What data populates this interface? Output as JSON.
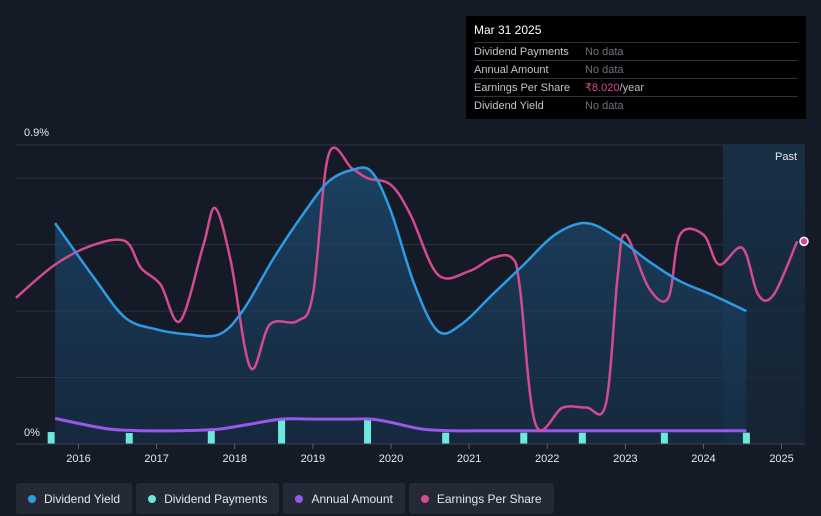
{
  "tooltip": {
    "date": "Mar 31 2025",
    "rows": [
      {
        "label": "Dividend Payments",
        "value": "No data"
      },
      {
        "label": "Annual Amount",
        "value": "No data"
      },
      {
        "label": "Earnings Per Share",
        "value": "₹8.020",
        "unit": "/year"
      },
      {
        "label": "Dividend Yield",
        "value": "No data"
      }
    ]
  },
  "legend": [
    {
      "label": "Dividend Yield",
      "color": "#2d9be6"
    },
    {
      "label": "Dividend Payments",
      "color": "#6ee7dc"
    },
    {
      "label": "Annual Amount",
      "color": "#9a58e8"
    },
    {
      "label": "Earnings Per Share",
      "color": "#d34b8e"
    }
  ],
  "chart_data": {
    "type": "line",
    "title": "",
    "ylabel_top": "0.9%",
    "ylabel_bottom": "0%",
    "ylim": [
      0,
      0.9
    ],
    "xlim": [
      2015.2,
      2025.3
    ],
    "past_label": "Past",
    "past_start": 2024.25,
    "x_ticks": [
      "2016",
      "2017",
      "2018",
      "2019",
      "2020",
      "2021",
      "2022",
      "2023",
      "2024",
      "2025"
    ],
    "series": [
      {
        "name": "Dividend Yield",
        "color": "#2d9be6",
        "filled": true,
        "points": [
          [
            2015.7,
            0.665
          ],
          [
            2016.2,
            0.5
          ],
          [
            2016.6,
            0.38
          ],
          [
            2017.0,
            0.345
          ],
          [
            2017.4,
            0.33
          ],
          [
            2017.8,
            0.33
          ],
          [
            2018.1,
            0.4
          ],
          [
            2018.5,
            0.56
          ],
          [
            2018.9,
            0.7
          ],
          [
            2019.2,
            0.79
          ],
          [
            2019.5,
            0.825
          ],
          [
            2019.75,
            0.82
          ],
          [
            2020.0,
            0.7
          ],
          [
            2020.3,
            0.48
          ],
          [
            2020.6,
            0.34
          ],
          [
            2020.9,
            0.36
          ],
          [
            2021.3,
            0.45
          ],
          [
            2021.7,
            0.54
          ],
          [
            2022.1,
            0.63
          ],
          [
            2022.5,
            0.665
          ],
          [
            2022.9,
            0.62
          ],
          [
            2023.3,
            0.55
          ],
          [
            2023.7,
            0.49
          ],
          [
            2024.1,
            0.45
          ],
          [
            2024.55,
            0.4
          ]
        ]
      },
      {
        "name": "Earnings Per Share",
        "color": "#d34b8e",
        "points": [
          [
            2015.2,
            0.44
          ],
          [
            2015.7,
            0.54
          ],
          [
            2016.2,
            0.6
          ],
          [
            2016.6,
            0.61
          ],
          [
            2016.8,
            0.53
          ],
          [
            2017.05,
            0.48
          ],
          [
            2017.3,
            0.37
          ],
          [
            2017.6,
            0.6
          ],
          [
            2017.75,
            0.71
          ],
          [
            2017.95,
            0.55
          ],
          [
            2018.2,
            0.23
          ],
          [
            2018.45,
            0.36
          ],
          [
            2018.8,
            0.37
          ],
          [
            2019.0,
            0.45
          ],
          [
            2019.2,
            0.87
          ],
          [
            2019.5,
            0.83
          ],
          [
            2019.7,
            0.8
          ],
          [
            2020.0,
            0.78
          ],
          [
            2020.25,
            0.69
          ],
          [
            2020.6,
            0.51
          ],
          [
            2021.0,
            0.52
          ],
          [
            2021.3,
            0.56
          ],
          [
            2021.55,
            0.56
          ],
          [
            2021.65,
            0.47
          ],
          [
            2021.85,
            0.06
          ],
          [
            2022.2,
            0.11
          ],
          [
            2022.5,
            0.11
          ],
          [
            2022.75,
            0.12
          ],
          [
            2022.9,
            0.5
          ],
          [
            2023.0,
            0.63
          ],
          [
            2023.3,
            0.47
          ],
          [
            2023.55,
            0.44
          ],
          [
            2023.7,
            0.63
          ],
          [
            2024.0,
            0.63
          ],
          [
            2024.2,
            0.54
          ],
          [
            2024.5,
            0.59
          ],
          [
            2024.7,
            0.45
          ],
          [
            2024.9,
            0.45
          ],
          [
            2025.2,
            0.61
          ]
        ]
      },
      {
        "name": "Annual Amount",
        "color": "#9a58e8",
        "points": [
          [
            2015.7,
            0.077
          ],
          [
            2016.0,
            0.062
          ],
          [
            2016.4,
            0.045
          ],
          [
            2016.8,
            0.04
          ],
          [
            2017.3,
            0.04
          ],
          [
            2017.8,
            0.045
          ],
          [
            2018.2,
            0.06
          ],
          [
            2018.6,
            0.075
          ],
          [
            2019.0,
            0.075
          ],
          [
            2019.5,
            0.075
          ],
          [
            2019.75,
            0.075
          ],
          [
            2020.0,
            0.065
          ],
          [
            2020.4,
            0.045
          ],
          [
            2020.8,
            0.04
          ],
          [
            2021.3,
            0.04
          ],
          [
            2021.8,
            0.04
          ],
          [
            2022.3,
            0.04
          ],
          [
            2022.8,
            0.04
          ],
          [
            2023.3,
            0.04
          ],
          [
            2023.8,
            0.04
          ],
          [
            2024.3,
            0.04
          ],
          [
            2024.55,
            0.04
          ]
        ]
      }
    ],
    "bars": {
      "name": "Dividend Payments",
      "color": "#6ee7dc",
      "points": [
        [
          2015.65,
          0.036
        ],
        [
          2016.65,
          0.033
        ],
        [
          2017.7,
          0.045
        ],
        [
          2018.6,
          0.074
        ],
        [
          2019.7,
          0.074
        ],
        [
          2020.7,
          0.034
        ],
        [
          2021.7,
          0.034
        ],
        [
          2022.45,
          0.034
        ],
        [
          2023.5,
          0.034
        ],
        [
          2024.55,
          0.034
        ]
      ]
    },
    "end_marker": {
      "x": 2025.3,
      "y": 0.61,
      "color": "#d34b8e"
    }
  }
}
